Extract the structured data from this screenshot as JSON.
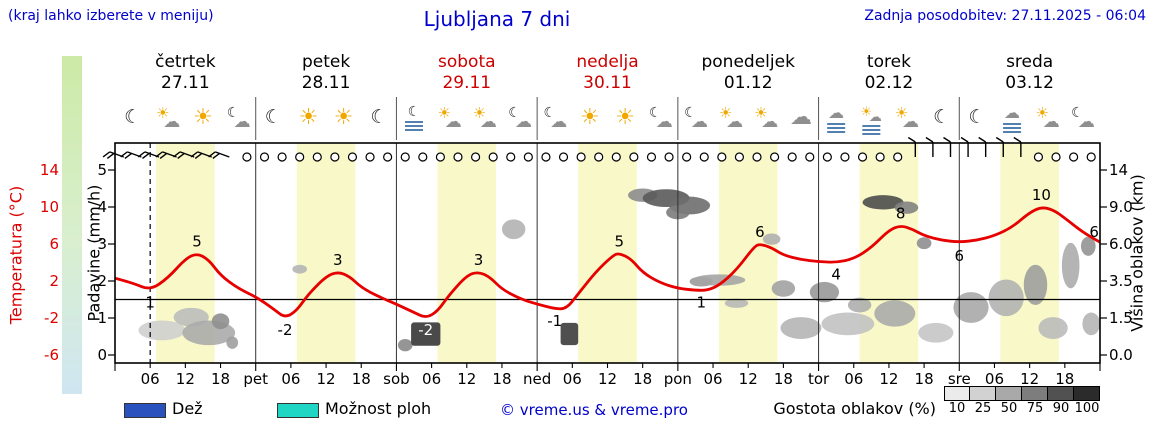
{
  "header": {
    "menu_note": "(kraj lahko izberete v meniju)",
    "title": "Ljubljana 7 dni",
    "updated": "Zadnja posodobitev: 27.11.2025 - 06:04"
  },
  "axes": {
    "temp_label": "Temperatura (°C)",
    "temp_ticks": [
      14,
      10,
      6,
      2,
      -2,
      -6
    ],
    "precip_label": "Padavine (mm/h)",
    "precip_ticks": [
      5,
      4,
      3,
      2,
      1,
      0
    ],
    "cloud_label": "Višina oblakov (km)",
    "cloud_ticks": [
      "14",
      "9.0",
      "6.0",
      "3.5",
      "1.5",
      "0.0"
    ]
  },
  "days": [
    {
      "name": "četrtek",
      "date": "27.11",
      "color": "#000000"
    },
    {
      "name": "petek",
      "date": "28.11",
      "color": "#000000"
    },
    {
      "name": "sobota",
      "date": "29.11",
      "color": "#cc0000"
    },
    {
      "name": "nedelja",
      "date": "30.11",
      "color": "#cc0000"
    },
    {
      "name": "ponedeljek",
      "date": "01.12",
      "color": "#000000"
    },
    {
      "name": "torek",
      "date": "02.12",
      "color": "#000000"
    },
    {
      "name": "sreda",
      "date": "03.12",
      "color": "#000000"
    }
  ],
  "legend": {
    "rain_label": "Dež",
    "rain_color": "#2a52be",
    "showers_label": "Možnost ploh",
    "showers_color": "#1fd6c4",
    "copyright": "© vreme.us & vreme.pro",
    "cloud_density_label": "Gostota oblakov (%)",
    "density_steps": [
      {
        "label": "10",
        "color": "#ebebeb"
      },
      {
        "label": "25",
        "color": "#d2d2d2"
      },
      {
        "label": "50",
        "color": "#a9a9a9"
      },
      {
        "label": "75",
        "color": "#7d7d7d"
      },
      {
        "label": "90",
        "color": "#515151"
      },
      {
        "label": "100",
        "color": "#2b2b2b"
      }
    ]
  },
  "chart_data": {
    "type": "line",
    "title": "Ljubljana 7 dni",
    "hours_span": 168,
    "now_hour": 6,
    "freezing_line_c": 0,
    "daylight_color": "#f8f8c8",
    "daylight_bands": [
      [
        7,
        17
      ],
      [
        31,
        41
      ],
      [
        55,
        65
      ],
      [
        79,
        89
      ],
      [
        103,
        113
      ],
      [
        127,
        137
      ],
      [
        151,
        161
      ]
    ],
    "time_labels": [
      {
        "t": 6,
        "label": "06"
      },
      {
        "t": 12,
        "label": "12"
      },
      {
        "t": 18,
        "label": "18"
      },
      {
        "t": 24,
        "label": "pet"
      },
      {
        "t": 30,
        "label": "06"
      },
      {
        "t": 36,
        "label": "12"
      },
      {
        "t": 42,
        "label": "18"
      },
      {
        "t": 48,
        "label": "sob"
      },
      {
        "t": 54,
        "label": "06"
      },
      {
        "t": 60,
        "label": "12"
      },
      {
        "t": 66,
        "label": "18"
      },
      {
        "t": 72,
        "label": "ned"
      },
      {
        "t": 78,
        "label": "06"
      },
      {
        "t": 84,
        "label": "12"
      },
      {
        "t": 90,
        "label": "18"
      },
      {
        "t": 96,
        "label": "pon"
      },
      {
        "t": 102,
        "label": "06"
      },
      {
        "t": 108,
        "label": "12"
      },
      {
        "t": 114,
        "label": "18"
      },
      {
        "t": 120,
        "label": "tor"
      },
      {
        "t": 126,
        "label": "06"
      },
      {
        "t": 132,
        "label": "12"
      },
      {
        "t": 138,
        "label": "18"
      },
      {
        "t": 144,
        "label": "sre"
      },
      {
        "t": 150,
        "label": "06"
      },
      {
        "t": 156,
        "label": "12"
      },
      {
        "t": 162,
        "label": "18"
      }
    ],
    "temperature": {
      "unit": "°C",
      "color": "#e60000",
      "points": [
        [
          0,
          2.3
        ],
        [
          3,
          1.8
        ],
        [
          6,
          1.0
        ],
        [
          9,
          2.3
        ],
        [
          12,
          4.4
        ],
        [
          14,
          5.0
        ],
        [
          16,
          4.3
        ],
        [
          18,
          2.6
        ],
        [
          21,
          1.2
        ],
        [
          24,
          0.3
        ],
        [
          27,
          -1.0
        ],
        [
          29,
          -2.0
        ],
        [
          31,
          -1.2
        ],
        [
          33,
          0.6
        ],
        [
          36,
          2.5
        ],
        [
          38,
          3.0
        ],
        [
          40,
          2.5
        ],
        [
          42,
          1.3
        ],
        [
          45,
          0.3
        ],
        [
          48,
          -0.5
        ],
        [
          51,
          -1.4
        ],
        [
          53,
          -2.0
        ],
        [
          55,
          -1.3
        ],
        [
          57,
          0.5
        ],
        [
          60,
          2.6
        ],
        [
          62,
          3.0
        ],
        [
          64,
          2.4
        ],
        [
          66,
          1.1
        ],
        [
          69,
          0.1
        ],
        [
          72,
          -0.5
        ],
        [
          75,
          -1.0
        ],
        [
          77,
          -1.0
        ],
        [
          79,
          0.6
        ],
        [
          82,
          3.0
        ],
        [
          85,
          4.8
        ],
        [
          86,
          5.0
        ],
        [
          88,
          4.4
        ],
        [
          90,
          2.9
        ],
        [
          93,
          1.8
        ],
        [
          96,
          1.2
        ],
        [
          99,
          1.0
        ],
        [
          101,
          1.0
        ],
        [
          103,
          1.5
        ],
        [
          106,
          3.2
        ],
        [
          109,
          5.7
        ],
        [
          110,
          6.0
        ],
        [
          112,
          5.6
        ],
        [
          114,
          4.8
        ],
        [
          117,
          4.3
        ],
        [
          120,
          4.1
        ],
        [
          123,
          4.0
        ],
        [
          126,
          4.4
        ],
        [
          129,
          5.6
        ],
        [
          132,
          7.5
        ],
        [
          134,
          8.0
        ],
        [
          136,
          7.6
        ],
        [
          138,
          6.9
        ],
        [
          141,
          6.4
        ],
        [
          144,
          6.2
        ],
        [
          147,
          6.4
        ],
        [
          150,
          6.9
        ],
        [
          153,
          7.8
        ],
        [
          156,
          9.4
        ],
        [
          158,
          10.0
        ],
        [
          160,
          9.7
        ],
        [
          162,
          8.8
        ],
        [
          165,
          7.3
        ],
        [
          168,
          6.2
        ]
      ],
      "labels": [
        {
          "t": 6,
          "v": 1,
          "label": "1",
          "pos": "below"
        },
        {
          "t": 14,
          "v": 5,
          "label": "5",
          "pos": "above"
        },
        {
          "t": 29,
          "v": -2,
          "label": "-2",
          "pos": "below"
        },
        {
          "t": 38,
          "v": 3,
          "label": "3",
          "pos": "above"
        },
        {
          "t": 53,
          "v": -2,
          "label": "-2",
          "pos": "below",
          "color": "#ffffff"
        },
        {
          "t": 62,
          "v": 3,
          "label": "3",
          "pos": "above"
        },
        {
          "t": 75,
          "v": -1,
          "label": "-1",
          "pos": "below"
        },
        {
          "t": 86,
          "v": 5,
          "label": "5",
          "pos": "above"
        },
        {
          "t": 100,
          "v": 1,
          "label": "1",
          "pos": "below"
        },
        {
          "t": 110,
          "v": 6,
          "label": "6",
          "pos": "above"
        },
        {
          "t": 123,
          "v": 4,
          "label": "4",
          "pos": "below"
        },
        {
          "t": 134,
          "v": 8,
          "label": "8",
          "pos": "above"
        },
        {
          "t": 144,
          "v": 6,
          "label": "6",
          "pos": "below"
        },
        {
          "t": 158,
          "v": 10,
          "label": "10",
          "pos": "above"
        },
        {
          "t": 167,
          "v": 6,
          "label": "6",
          "pos": "above"
        }
      ]
    },
    "precipitation": {
      "unit": "mm/h",
      "rain_bars": []
    },
    "wind": {
      "step_h": 3,
      "calm_symbol": "circle",
      "barb_groups": [
        {
          "from": 0,
          "to": 22,
          "angle": 200,
          "feathers": 2
        },
        {
          "from": 135,
          "to": 157,
          "angle": -90,
          "feathers": 1
        }
      ]
    },
    "clouds": [
      {
        "t": 8,
        "km": 1.0,
        "w": 8,
        "h": 0.8,
        "c": "#cfcfcf",
        "s": "e"
      },
      {
        "t": 13,
        "km": 1.6,
        "w": 6,
        "h": 0.9,
        "c": "#bdbdbd",
        "s": "e"
      },
      {
        "t": 16,
        "km": 0.9,
        "w": 9,
        "h": 1.0,
        "c": "#ababab",
        "s": "e"
      },
      {
        "t": 18,
        "km": 1.4,
        "w": 3,
        "h": 0.7,
        "c": "#8f8f8f",
        "s": "e"
      },
      {
        "t": 20,
        "km": 0.5,
        "w": 2,
        "h": 0.5,
        "c": "#9f9f9f",
        "s": "e"
      },
      {
        "t": 31.5,
        "km": 4.3,
        "w": 2.5,
        "h": 0.6,
        "c": "#b5b5b5",
        "s": "e"
      },
      {
        "t": 49.5,
        "km": 0.4,
        "w": 2.5,
        "h": 0.5,
        "c": "#8a8a8a",
        "s": "e"
      },
      {
        "t": 53,
        "km": 0.85,
        "w": 5,
        "h": 0.95,
        "c": "#4a4a4a",
        "s": "r"
      },
      {
        "t": 68,
        "km": 7.2,
        "w": 4,
        "h": 1.6,
        "c": "#b2b2b2",
        "s": "e"
      },
      {
        "t": 77.5,
        "km": 0.85,
        "w": 3,
        "h": 0.9,
        "c": "#4f4f4f",
        "s": "r"
      },
      {
        "t": 90,
        "km": 10.6,
        "w": 5,
        "h": 1.8,
        "c": "#8c8c8c",
        "s": "e"
      },
      {
        "t": 94,
        "km": 10.2,
        "w": 8,
        "h": 2.4,
        "c": "#5a5a5a",
        "s": "e"
      },
      {
        "t": 98,
        "km": 9.4,
        "w": 7,
        "h": 2.0,
        "c": "#6e6e6e",
        "s": "e"
      },
      {
        "t": 96,
        "km": 8.6,
        "w": 4,
        "h": 1.2,
        "c": "#7c7c7c",
        "s": "e"
      },
      {
        "t": 100,
        "km": 3.5,
        "w": 4,
        "h": 0.6,
        "c": "#9b9b9b",
        "s": "e"
      },
      {
        "t": 103,
        "km": 3.6,
        "w": 9,
        "h": 0.7,
        "c": "#a5a5a5",
        "s": "e"
      },
      {
        "t": 106,
        "km": 2.3,
        "w": 4,
        "h": 0.5,
        "c": "#b8b8b8",
        "s": "e"
      },
      {
        "t": 112,
        "km": 6.4,
        "w": 3,
        "h": 0.9,
        "c": "#b0b0b0",
        "s": "e"
      },
      {
        "t": 114,
        "km": 3.1,
        "w": 4,
        "h": 0.9,
        "c": "#a2a2a2",
        "s": "e"
      },
      {
        "t": 117,
        "km": 1.1,
        "w": 7,
        "h": 0.9,
        "c": "#b5b5b5",
        "s": "e"
      },
      {
        "t": 121,
        "km": 2.9,
        "w": 5,
        "h": 1.1,
        "c": "#989898",
        "s": "e"
      },
      {
        "t": 125,
        "km": 1.3,
        "w": 9,
        "h": 1.0,
        "c": "#c2c2c2",
        "s": "e"
      },
      {
        "t": 127,
        "km": 2.2,
        "w": 4,
        "h": 0.8,
        "c": "#aeaeae",
        "s": "e"
      },
      {
        "t": 131,
        "km": 9.7,
        "w": 7,
        "h": 1.8,
        "c": "#4d4d4d",
        "s": "e"
      },
      {
        "t": 135,
        "km": 9.1,
        "w": 4,
        "h": 1.3,
        "c": "#828282",
        "s": "e"
      },
      {
        "t": 133,
        "km": 1.8,
        "w": 7,
        "h": 1.3,
        "c": "#ababab",
        "s": "e"
      },
      {
        "t": 138,
        "km": 6.1,
        "w": 2.5,
        "h": 0.9,
        "c": "#8f8f8f",
        "s": "e"
      },
      {
        "t": 140,
        "km": 0.9,
        "w": 6,
        "h": 0.8,
        "c": "#c5c5c5",
        "s": "e"
      },
      {
        "t": 146,
        "km": 2.1,
        "w": 6,
        "h": 1.6,
        "c": "#a8a8a8",
        "s": "e"
      },
      {
        "t": 152,
        "km": 2.6,
        "w": 6,
        "h": 2.0,
        "c": "#b2b2b2",
        "s": "e"
      },
      {
        "t": 157,
        "km": 3.4,
        "w": 4,
        "h": 2.4,
        "c": "#9f9f9f",
        "s": "e"
      },
      {
        "t": 160,
        "km": 1.1,
        "w": 5,
        "h": 0.9,
        "c": "#bbbbbb",
        "s": "e"
      },
      {
        "t": 163,
        "km": 4.6,
        "w": 3,
        "h": 3.0,
        "c": "#acacac",
        "s": "e"
      },
      {
        "t": 166,
        "km": 5.9,
        "w": 2.5,
        "h": 1.4,
        "c": "#939393",
        "s": "e"
      },
      {
        "t": 166.5,
        "km": 1.3,
        "w": 3,
        "h": 1.0,
        "c": "#b5b5b5",
        "s": "e"
      }
    ],
    "icons": [
      "moon",
      "sun-cloud",
      "sun",
      "moon-cloud",
      "moon",
      "sun",
      "sun",
      "moon",
      "moon-fog",
      "sun-cloud",
      "sun-cloud",
      "moon-cloud",
      "moon-cloud",
      "sun",
      "sun",
      "moon-cloud",
      "moon-cloud",
      "sun-cloud",
      "sun-cloud",
      "cloud",
      "cloud-fog",
      "sun-fog",
      "sun-cloud",
      "moon",
      "moon",
      "cloud-fog",
      "sun-cloud",
      "moon-cloud"
    ]
  }
}
